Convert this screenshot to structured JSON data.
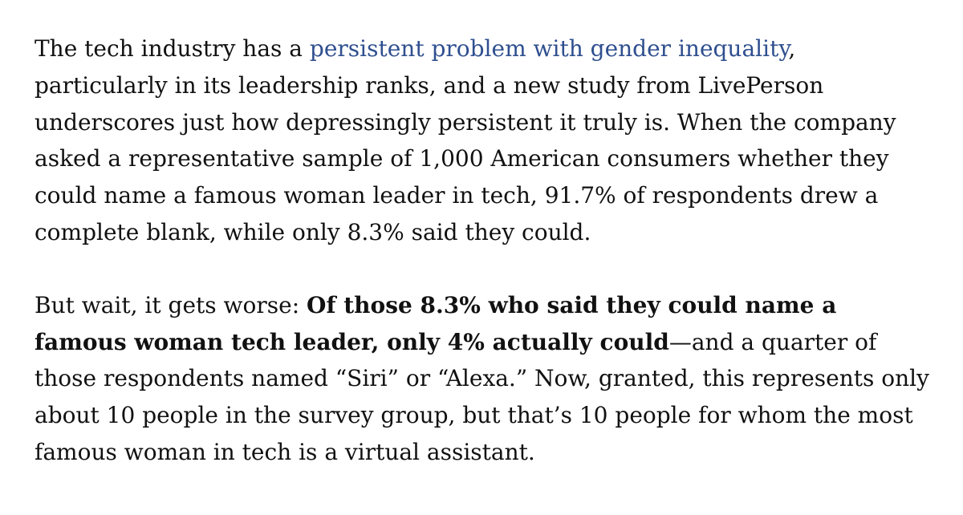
{
  "article": {
    "paragraph_1": {
      "before_link": "The tech industry has a ",
      "link_text": "persistent problem with gender inequality",
      "after_link": ", particularly in its leadership ranks, and a new study from LivePerson underscores just how depressingly persistent it truly is. When the company asked a representative sample of 1,000 American consumers whether they could name a famous woman leader in tech, 91.7% of respondents drew a complete blank, while only 8.3% said they could."
    },
    "paragraph_2": {
      "lead": "But wait, it gets worse: ",
      "bold": "Of those 8.3% who said they could name a famous woman tech leader, only 4% actually could",
      "rest": "—and a quarter of those respondents named “Siri” or “Alexa.” Now, granted, this represents only about 10 people in the survey group, but that’s 10 people for whom the most famous woman in tech is a virtual assistant."
    }
  },
  "colors": {
    "text": "#111111",
    "link": "#2f4f8f",
    "background": "#ffffff"
  }
}
